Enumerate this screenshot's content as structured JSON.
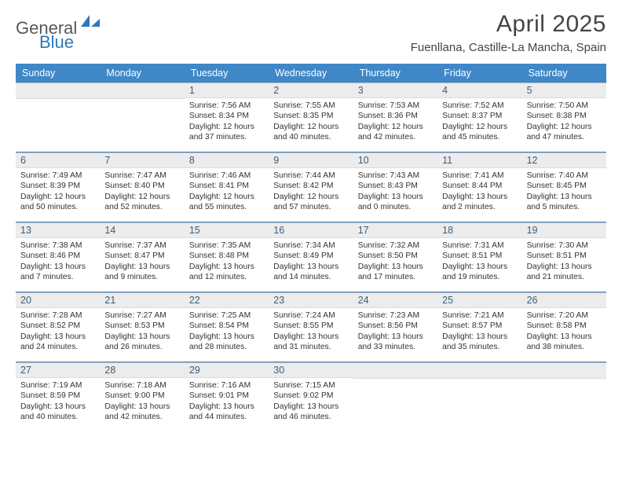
{
  "brand": {
    "word1": "General",
    "word2": "Blue"
  },
  "title": "April 2025",
  "location": "Fuenllana, Castille-La Mancha, Spain",
  "colors": {
    "header_bg": "#3f87c7",
    "header_text": "#ffffff",
    "daynum_bg": "#ececec",
    "daynum_text": "#3a5d7a",
    "rule": "#3f87c7",
    "brand_gray": "#585858",
    "brand_blue": "#2f78b9"
  },
  "weekdays": [
    "Sunday",
    "Monday",
    "Tuesday",
    "Wednesday",
    "Thursday",
    "Friday",
    "Saturday"
  ],
  "leading_blanks": 2,
  "days": [
    {
      "n": 1,
      "sunrise": "7:56 AM",
      "sunset": "8:34 PM",
      "daylight": "12 hours and 37 minutes."
    },
    {
      "n": 2,
      "sunrise": "7:55 AM",
      "sunset": "8:35 PM",
      "daylight": "12 hours and 40 minutes."
    },
    {
      "n": 3,
      "sunrise": "7:53 AM",
      "sunset": "8:36 PM",
      "daylight": "12 hours and 42 minutes."
    },
    {
      "n": 4,
      "sunrise": "7:52 AM",
      "sunset": "8:37 PM",
      "daylight": "12 hours and 45 minutes."
    },
    {
      "n": 5,
      "sunrise": "7:50 AM",
      "sunset": "8:38 PM",
      "daylight": "12 hours and 47 minutes."
    },
    {
      "n": 6,
      "sunrise": "7:49 AM",
      "sunset": "8:39 PM",
      "daylight": "12 hours and 50 minutes."
    },
    {
      "n": 7,
      "sunrise": "7:47 AM",
      "sunset": "8:40 PM",
      "daylight": "12 hours and 52 minutes."
    },
    {
      "n": 8,
      "sunrise": "7:46 AM",
      "sunset": "8:41 PM",
      "daylight": "12 hours and 55 minutes."
    },
    {
      "n": 9,
      "sunrise": "7:44 AM",
      "sunset": "8:42 PM",
      "daylight": "12 hours and 57 minutes."
    },
    {
      "n": 10,
      "sunrise": "7:43 AM",
      "sunset": "8:43 PM",
      "daylight": "13 hours and 0 minutes."
    },
    {
      "n": 11,
      "sunrise": "7:41 AM",
      "sunset": "8:44 PM",
      "daylight": "13 hours and 2 minutes."
    },
    {
      "n": 12,
      "sunrise": "7:40 AM",
      "sunset": "8:45 PM",
      "daylight": "13 hours and 5 minutes."
    },
    {
      "n": 13,
      "sunrise": "7:38 AM",
      "sunset": "8:46 PM",
      "daylight": "13 hours and 7 minutes."
    },
    {
      "n": 14,
      "sunrise": "7:37 AM",
      "sunset": "8:47 PM",
      "daylight": "13 hours and 9 minutes."
    },
    {
      "n": 15,
      "sunrise": "7:35 AM",
      "sunset": "8:48 PM",
      "daylight": "13 hours and 12 minutes."
    },
    {
      "n": 16,
      "sunrise": "7:34 AM",
      "sunset": "8:49 PM",
      "daylight": "13 hours and 14 minutes."
    },
    {
      "n": 17,
      "sunrise": "7:32 AM",
      "sunset": "8:50 PM",
      "daylight": "13 hours and 17 minutes."
    },
    {
      "n": 18,
      "sunrise": "7:31 AM",
      "sunset": "8:51 PM",
      "daylight": "13 hours and 19 minutes."
    },
    {
      "n": 19,
      "sunrise": "7:30 AM",
      "sunset": "8:51 PM",
      "daylight": "13 hours and 21 minutes."
    },
    {
      "n": 20,
      "sunrise": "7:28 AM",
      "sunset": "8:52 PM",
      "daylight": "13 hours and 24 minutes."
    },
    {
      "n": 21,
      "sunrise": "7:27 AM",
      "sunset": "8:53 PM",
      "daylight": "13 hours and 26 minutes."
    },
    {
      "n": 22,
      "sunrise": "7:25 AM",
      "sunset": "8:54 PM",
      "daylight": "13 hours and 28 minutes."
    },
    {
      "n": 23,
      "sunrise": "7:24 AM",
      "sunset": "8:55 PM",
      "daylight": "13 hours and 31 minutes."
    },
    {
      "n": 24,
      "sunrise": "7:23 AM",
      "sunset": "8:56 PM",
      "daylight": "13 hours and 33 minutes."
    },
    {
      "n": 25,
      "sunrise": "7:21 AM",
      "sunset": "8:57 PM",
      "daylight": "13 hours and 35 minutes."
    },
    {
      "n": 26,
      "sunrise": "7:20 AM",
      "sunset": "8:58 PM",
      "daylight": "13 hours and 38 minutes."
    },
    {
      "n": 27,
      "sunrise": "7:19 AM",
      "sunset": "8:59 PM",
      "daylight": "13 hours and 40 minutes."
    },
    {
      "n": 28,
      "sunrise": "7:18 AM",
      "sunset": "9:00 PM",
      "daylight": "13 hours and 42 minutes."
    },
    {
      "n": 29,
      "sunrise": "7:16 AM",
      "sunset": "9:01 PM",
      "daylight": "13 hours and 44 minutes."
    },
    {
      "n": 30,
      "sunrise": "7:15 AM",
      "sunset": "9:02 PM",
      "daylight": "13 hours and 46 minutes."
    }
  ],
  "labels": {
    "sunrise": "Sunrise:",
    "sunset": "Sunset:",
    "daylight": "Daylight:"
  }
}
